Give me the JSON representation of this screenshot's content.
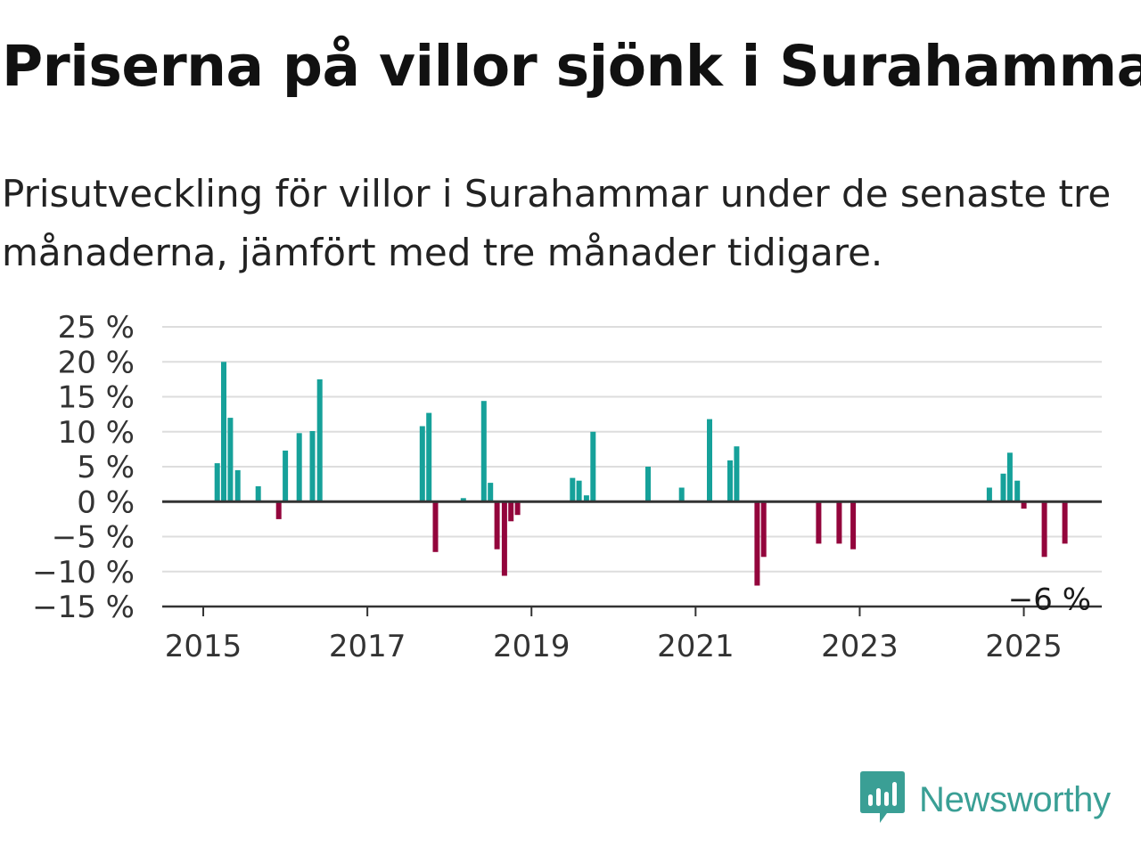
{
  "header": {
    "title": "Priserna på villor sjönk i Surahammar",
    "subtitle": "Prisutveckling för villor i Surahammar under de senaste tre månaderna, jämfört med tre månader tidigare."
  },
  "brand": {
    "name": "Newsworthy",
    "logo_icon": "newsworthy-bar-chart-speech-bubble-icon",
    "color": "#3a9f95"
  },
  "chart_data": {
    "type": "bar",
    "x_unit": "year",
    "ylim": [
      -15,
      25
    ],
    "yticks": [
      25,
      20,
      15,
      10,
      5,
      0,
      -5,
      -10,
      -15
    ],
    "ytick_labels": [
      "25 %",
      "20 %",
      "15 %",
      "10 %",
      "5 %",
      "0 %",
      "−5 %",
      "−10 %",
      "−15 %"
    ],
    "xlim": [
      2014.5,
      2025.95
    ],
    "xticks": [
      2015,
      2017,
      2019,
      2021,
      2023,
      2025
    ],
    "xtick_labels": [
      "2015",
      "2017",
      "2019",
      "2021",
      "2023",
      "2025"
    ],
    "grid": true,
    "colors": {
      "positive": "#16a19a",
      "negative": "#93053c",
      "grid": "#dddddd",
      "axis": "#333333"
    },
    "annotation": {
      "x": 2025.5,
      "y": -6,
      "label": "−6 %"
    },
    "points": [
      {
        "x": 2015.17,
        "y": 5.5
      },
      {
        "x": 2015.25,
        "y": 20
      },
      {
        "x": 2015.33,
        "y": 12
      },
      {
        "x": 2015.42,
        "y": 4.5
      },
      {
        "x": 2015.67,
        "y": 2.2
      },
      {
        "x": 2015.92,
        "y": -2.5
      },
      {
        "x": 2016.0,
        "y": 7.3
      },
      {
        "x": 2016.17,
        "y": 9.8
      },
      {
        "x": 2016.33,
        "y": 10.1
      },
      {
        "x": 2016.42,
        "y": 17.5
      },
      {
        "x": 2017.67,
        "y": 10.8
      },
      {
        "x": 2017.75,
        "y": 12.7
      },
      {
        "x": 2017.83,
        "y": -7.2
      },
      {
        "x": 2018.17,
        "y": 0.5
      },
      {
        "x": 2018.42,
        "y": 14.4
      },
      {
        "x": 2018.5,
        "y": 2.7
      },
      {
        "x": 2018.58,
        "y": -6.8
      },
      {
        "x": 2018.67,
        "y": -10.6
      },
      {
        "x": 2018.75,
        "y": -2.8
      },
      {
        "x": 2018.83,
        "y": -1.9
      },
      {
        "x": 2019.5,
        "y": 3.4
      },
      {
        "x": 2019.58,
        "y": 3
      },
      {
        "x": 2019.67,
        "y": 0.9
      },
      {
        "x": 2019.75,
        "y": 10
      },
      {
        "x": 2020.42,
        "y": 5
      },
      {
        "x": 2020.83,
        "y": 2
      },
      {
        "x": 2021.17,
        "y": 11.8
      },
      {
        "x": 2021.42,
        "y": 5.9
      },
      {
        "x": 2021.5,
        "y": 7.9
      },
      {
        "x": 2021.75,
        "y": -12
      },
      {
        "x": 2021.83,
        "y": -7.9
      },
      {
        "x": 2022.5,
        "y": -6
      },
      {
        "x": 2022.75,
        "y": -6
      },
      {
        "x": 2022.92,
        "y": -6.8
      },
      {
        "x": 2024.58,
        "y": 2
      },
      {
        "x": 2024.75,
        "y": 4
      },
      {
        "x": 2024.83,
        "y": 7
      },
      {
        "x": 2024.92,
        "y": 3
      },
      {
        "x": 2025.0,
        "y": -1
      },
      {
        "x": 2025.25,
        "y": -7.9
      },
      {
        "x": 2025.5,
        "y": -6
      }
    ]
  }
}
